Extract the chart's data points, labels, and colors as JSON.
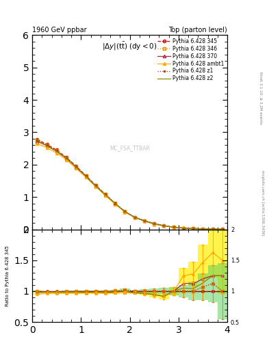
{
  "title_left": "1960 GeV ppbar",
  "title_right": "Top (parton level)",
  "plot_title": "|\\u0394y|(t\\u0305t\\u0305bar) (dy < 0)",
  "right_label1": "Rivet 3.1.10, ≥ 3.2M events",
  "right_label2": "mcplots.cern.ch [arXiv:1306.3436]",
  "watermark": "MC_FSA_TTBAR",
  "xlim": [
    0,
    4
  ],
  "ylim_main": [
    0,
    6
  ],
  "ylim_ratio": [
    0.5,
    2.0
  ],
  "x_data": [
    0.1,
    0.3,
    0.5,
    0.7,
    0.9,
    1.1,
    1.3,
    1.5,
    1.7,
    1.9,
    2.1,
    2.3,
    2.5,
    2.7,
    2.9,
    3.1,
    3.3,
    3.5,
    3.7,
    3.9
  ],
  "y_345": [
    2.78,
    2.62,
    2.45,
    2.22,
    1.95,
    1.66,
    1.36,
    1.08,
    0.8,
    0.55,
    0.38,
    0.27,
    0.18,
    0.12,
    0.07,
    0.04,
    0.025,
    0.015,
    0.008,
    0.004
  ],
  "y_346": [
    2.76,
    2.6,
    2.43,
    2.21,
    1.94,
    1.66,
    1.36,
    1.08,
    0.81,
    0.56,
    0.38,
    0.27,
    0.18,
    0.12,
    0.07,
    0.04,
    0.025,
    0.016,
    0.009,
    0.004
  ],
  "y_370": [
    2.72,
    2.58,
    2.41,
    2.19,
    1.92,
    1.63,
    1.34,
    1.06,
    0.79,
    0.54,
    0.37,
    0.26,
    0.17,
    0.11,
    0.07,
    0.045,
    0.028,
    0.018,
    0.01,
    0.005
  ],
  "y_ambt1": [
    2.65,
    2.52,
    2.36,
    2.15,
    1.88,
    1.61,
    1.32,
    1.04,
    0.78,
    0.54,
    0.37,
    0.26,
    0.17,
    0.11,
    0.07,
    0.05,
    0.032,
    0.022,
    0.013,
    0.006
  ],
  "y_z1": [
    2.76,
    2.6,
    2.43,
    2.21,
    1.94,
    1.66,
    1.36,
    1.08,
    0.8,
    0.56,
    0.38,
    0.27,
    0.18,
    0.12,
    0.07,
    0.04,
    0.025,
    0.016,
    0.009,
    0.004
  ],
  "y_z2": [
    2.74,
    2.58,
    2.41,
    2.2,
    1.92,
    1.64,
    1.34,
    1.07,
    0.8,
    0.55,
    0.37,
    0.26,
    0.17,
    0.11,
    0.07,
    0.042,
    0.026,
    0.017,
    0.01,
    0.005
  ],
  "ratio_346": [
    1.0,
    0.99,
    0.99,
    1.0,
    0.995,
    1.0,
    1.0,
    1.0,
    1.01,
    1.02,
    1.0,
    1.0,
    1.0,
    1.0,
    1.0,
    1.0,
    1.0,
    1.07,
    1.12,
    1.0
  ],
  "ratio_370": [
    0.978,
    0.985,
    0.984,
    0.986,
    0.985,
    0.982,
    0.985,
    0.981,
    0.988,
    0.982,
    0.974,
    0.963,
    0.944,
    0.917,
    1.0,
    1.125,
    1.12,
    1.2,
    1.25,
    1.25
  ],
  "ratio_ambt1": [
    0.953,
    0.962,
    0.963,
    0.968,
    0.964,
    0.97,
    0.971,
    0.963,
    0.975,
    0.982,
    0.974,
    0.963,
    0.944,
    0.917,
    1.0,
    1.25,
    1.28,
    1.467,
    1.625,
    1.5
  ],
  "ratio_z1": [
    0.993,
    0.992,
    0.992,
    0.995,
    0.995,
    1.0,
    1.0,
    1.0,
    1.0,
    1.018,
    1.0,
    1.0,
    1.0,
    1.0,
    1.0,
    1.0,
    1.0,
    1.067,
    1.125,
    1.0
  ],
  "ratio_z2": [
    0.986,
    0.985,
    0.984,
    0.991,
    0.985,
    0.988,
    0.985,
    0.991,
    1.0,
    1.0,
    0.974,
    0.963,
    0.944,
    0.917,
    1.0,
    1.05,
    1.04,
    1.133,
    1.25,
    1.25
  ],
  "yerr_ratio_346": [
    0.015,
    0.012,
    0.012,
    0.012,
    0.012,
    0.012,
    0.012,
    0.012,
    0.015,
    0.02,
    0.02,
    0.03,
    0.04,
    0.05,
    0.07,
    0.1,
    0.15,
    0.22,
    0.3,
    0.45
  ],
  "yerr_ratio_ambt1": [
    0.015,
    0.012,
    0.012,
    0.012,
    0.012,
    0.012,
    0.012,
    0.012,
    0.015,
    0.02,
    0.02,
    0.03,
    0.04,
    0.05,
    0.07,
    0.13,
    0.2,
    0.28,
    0.4,
    0.55
  ],
  "color_345": "#cc0000",
  "color_346": "#dd8800",
  "color_370": "#aa2244",
  "color_ambt1": "#ffaa00",
  "color_z1": "#bb3300",
  "color_z2": "#888800",
  "fill_ambt1": "#ffee44",
  "fill_346": "#44cc44",
  "bg_color": "#ffffff"
}
